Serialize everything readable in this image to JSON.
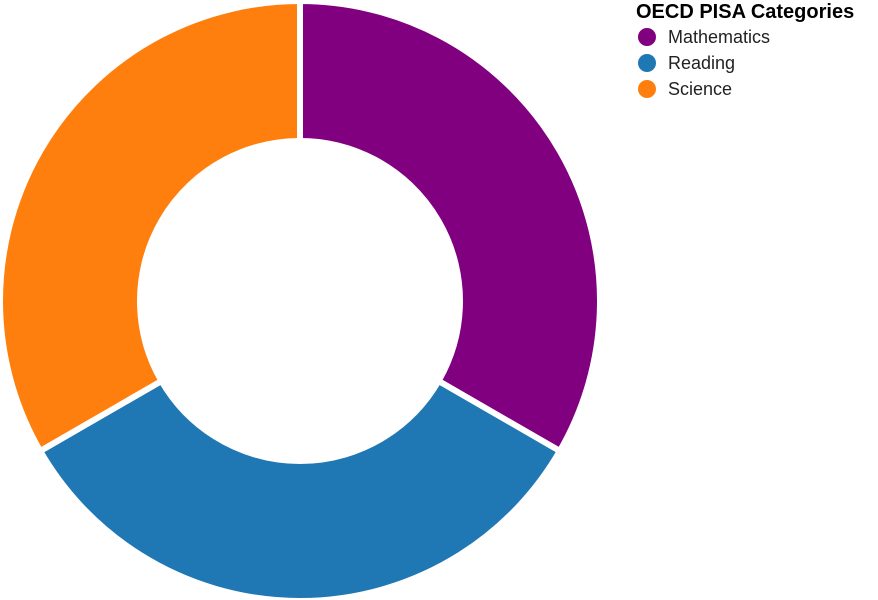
{
  "chart_data": {
    "type": "pie",
    "variant": "donut",
    "legend_title": "OECD PISA Categories",
    "legend_position": "top-right",
    "labels": [
      "Mathematics",
      "Reading",
      "Science"
    ],
    "values": [
      1,
      1,
      1
    ],
    "colors": [
      "#800080",
      "#1f77b4",
      "#ff7f0e"
    ]
  }
}
